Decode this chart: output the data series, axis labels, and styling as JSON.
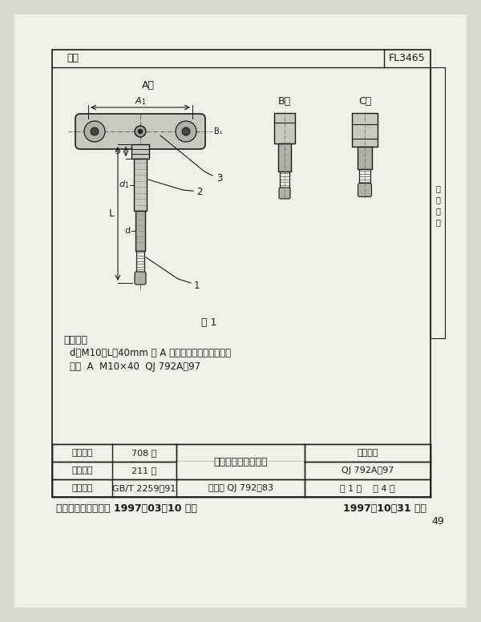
{
  "bg_color": "#d8d8d0",
  "page_bg": "#f0efe8",
  "border_color": "#222222",
  "title_left": "密级",
  "title_right": "FL3465",
  "figure_label": "图 1",
  "type_A": "A型",
  "type_B": "B型",
  "type_C": "C型",
  "annotation_title": "标记示例",
  "annotation_line1": "d＝M10、L＝40mm 的 A 型带换向手柄压紧螺钉：",
  "annotation_line2": "螺钉  A  M10×40  QJ 792A－97",
  "table_r1c1": "提出部门",
  "table_r1c2": "708 所",
  "table_r1c4": "标准图样",
  "table_r2c1": "起草单位",
  "table_r2c2": "211 厂",
  "table_r2c3": "带换向手柄压紧螺钉",
  "table_r2c4": "QJ 792A－97",
  "table_r3c1": "适用规范",
  "table_r3c2": "GB/T 2259－91",
  "table_r3c3": "代替： QJ 792－83",
  "table_r3c4": "第 1 页    共 4 页",
  "footer_left": "中国航天工业总公司 1997－03－10 发布",
  "footer_right": "1997－10－31 实施",
  "page_num": "49",
  "side_chars": [
    "：",
    "布",
    "发",
    "长"
  ],
  "lc": "#1a1a1a",
  "tc": "#1a1a1a",
  "gray1": "#c8c8c0",
  "gray2": "#b0b0a8",
  "gray3": "#989890"
}
